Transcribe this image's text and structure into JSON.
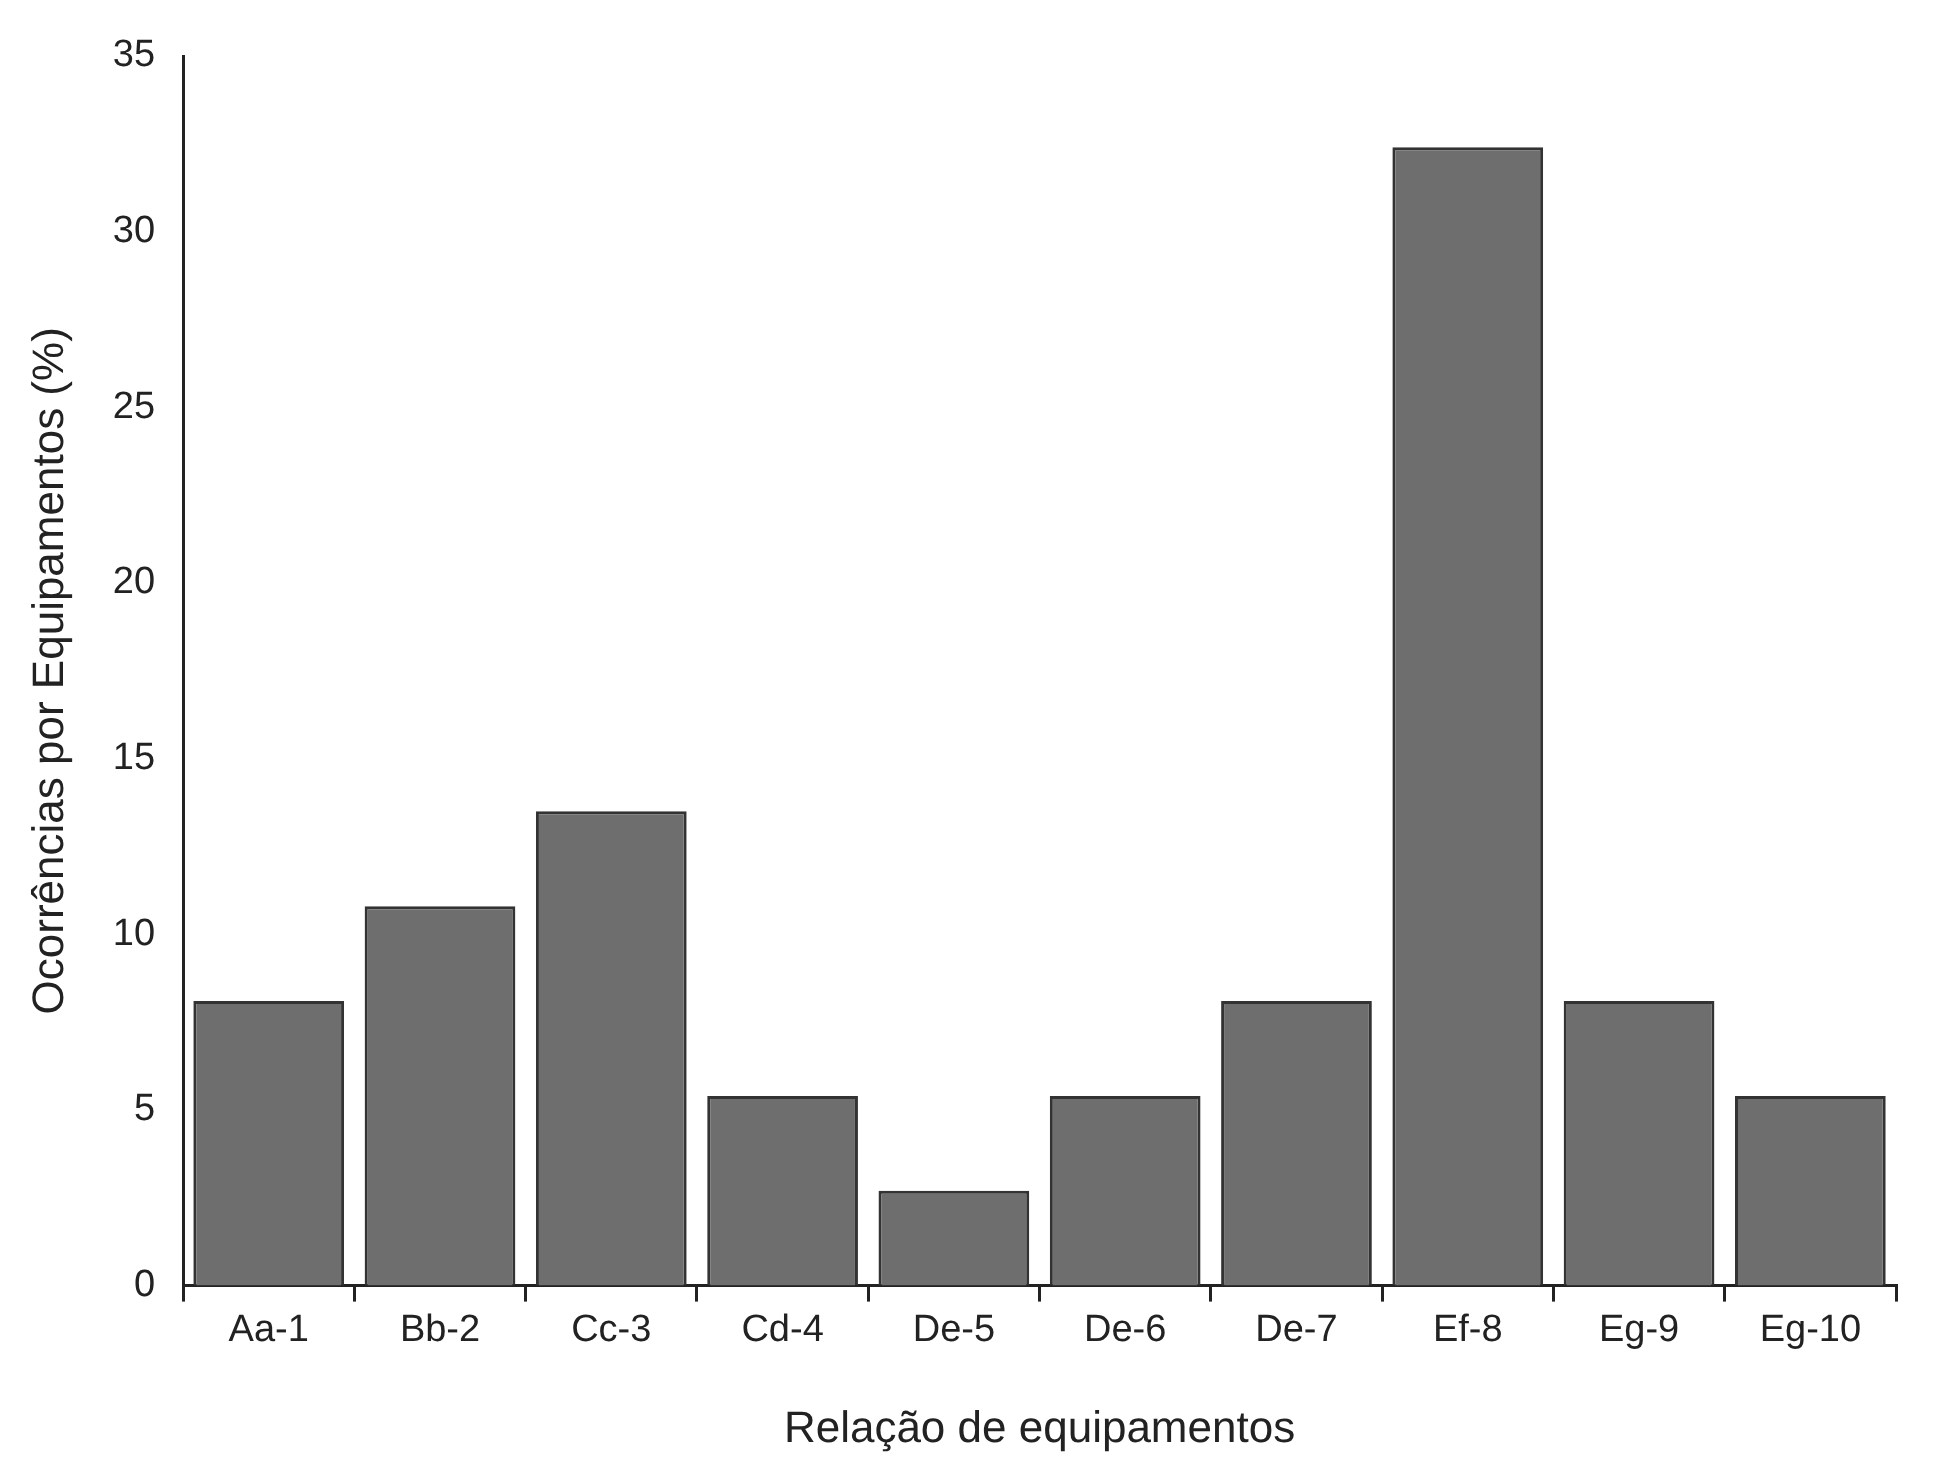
{
  "chart_data": {
    "type": "bar",
    "xlabel": "Relação de equipamentos",
    "ylabel": "Ocorrências por Equipamentos (%)",
    "categories": [
      "Aa-1",
      "Bb-2",
      "Cc-3",
      "Cd-4",
      "De-5",
      "De-6",
      "De-7",
      "Ef-8",
      "Eg-9",
      "Eg-10"
    ],
    "values": [
      8.1,
      10.8,
      13.5,
      5.4,
      2.7,
      5.4,
      8.1,
      32.4,
      8.1,
      5.4
    ],
    "color": "#6e6e6e",
    "ylim": [
      0,
      35
    ],
    "yticks": [
      0,
      5,
      10,
      15,
      20,
      25,
      30,
      35
    ],
    "grid": false,
    "legend": false
  }
}
